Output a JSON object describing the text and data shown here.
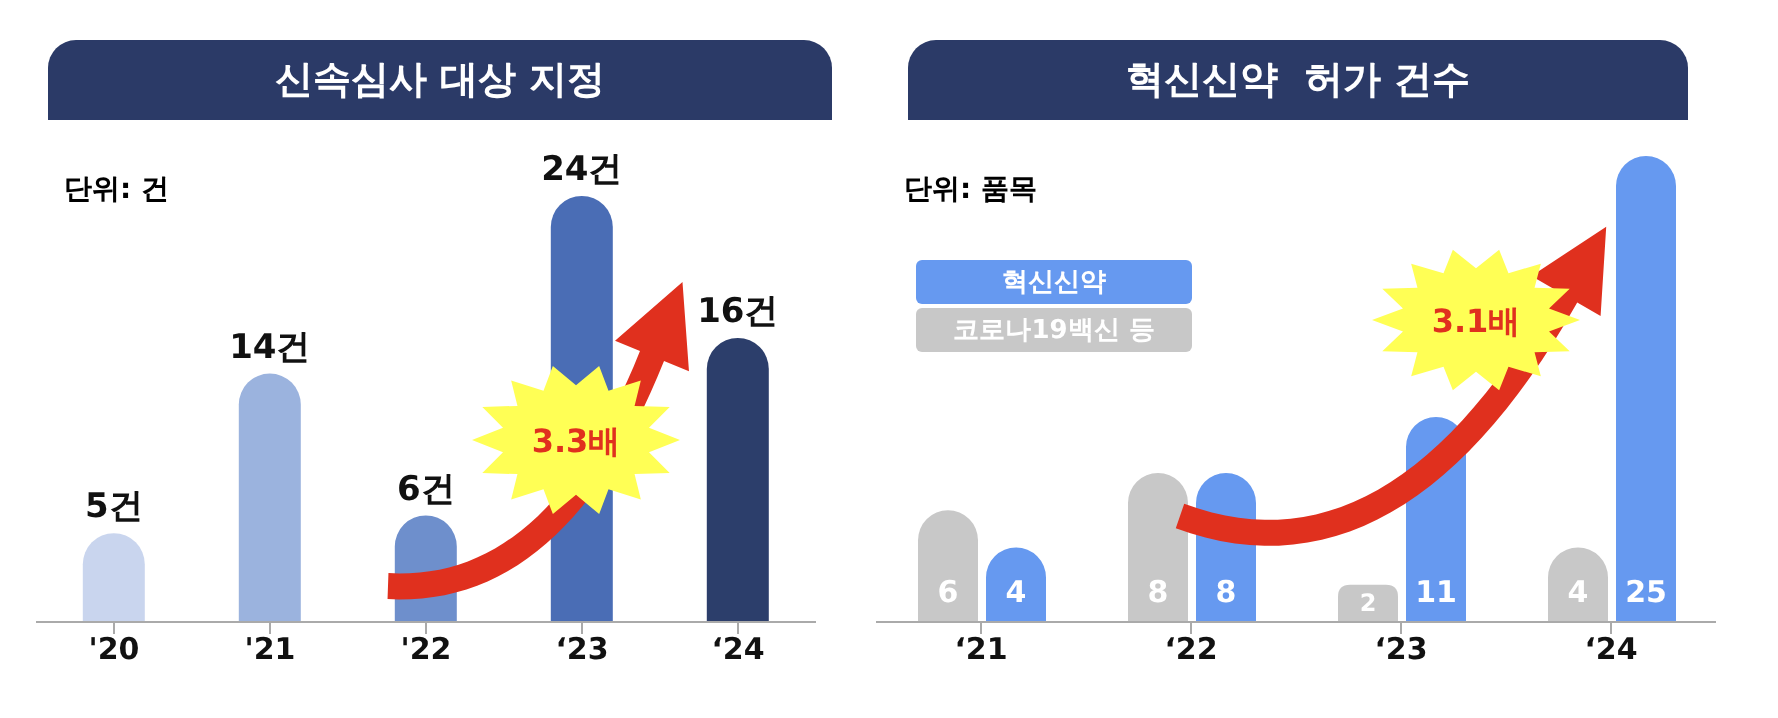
{
  "chart_data": [
    {
      "type": "bar",
      "title": "신속심사 대상 지정",
      "categories": [
        "'20",
        "'21",
        "'22",
        "‘23",
        "‘24"
      ],
      "values": [
        5,
        14,
        6,
        24,
        16
      ],
      "colors": [
        "#c9d5ee",
        "#9bb3de",
        "#6e8fcc",
        "#4a6db5",
        "#2c3e6b"
      ],
      "value_labels": [
        "5건",
        "14건",
        "6건",
        "24건",
        "16건"
      ],
      "annotations": [
        "단위: 건",
        "3.3배"
      ]
    },
    {
      "type": "bar",
      "title": "혁신신약  허가 건수",
      "categories": [
        "‘21",
        "‘22",
        "‘23",
        "‘24"
      ],
      "series": [
        {
          "name": "코로나19백신 등",
          "color": "#c8c8c8",
          "values": [
            6,
            8,
            2,
            4
          ]
        },
        {
          "name": "혁신신약",
          "color": "#6699f0",
          "values": [
            4,
            8,
            11,
            25
          ]
        }
      ],
      "data_labels": true,
      "legend": "top left",
      "annotations": [
        "단위: 품목",
        "3.1배"
      ]
    }
  ]
}
